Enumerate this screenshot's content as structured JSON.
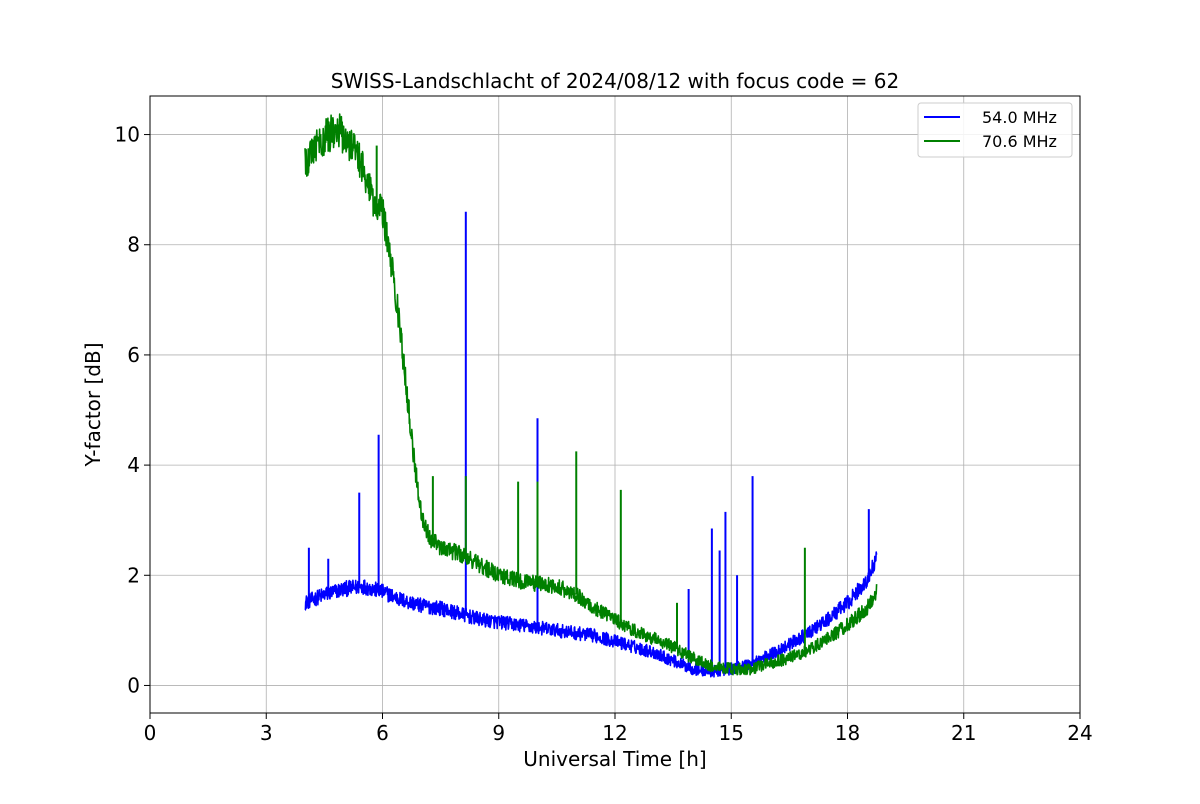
{
  "chart_data": {
    "type": "line",
    "title": "SWISS-Landschlacht of 2024/08/12 with focus code = 62",
    "xlabel": "Universal Time [h]",
    "ylabel": "Y-factor [dB]",
    "xlim": [
      0,
      24
    ],
    "ylim": [
      -0.5,
      10.7
    ],
    "xticks": [
      0,
      3,
      6,
      9,
      12,
      15,
      18,
      21,
      24
    ],
    "xtick_labels": [
      "0",
      "3",
      "6",
      "9",
      "12",
      "15",
      "18",
      "21",
      "24"
    ],
    "yticks": [
      0,
      2,
      4,
      6,
      8,
      10
    ],
    "ytick_labels": [
      "0",
      "2",
      "4",
      "6",
      "8",
      "10"
    ],
    "grid": true,
    "legend_position": "top-right",
    "legend": [
      "54.0 MHz",
      "70.6 MHz"
    ],
    "series": [
      {
        "name": "54.0 MHz",
        "color": "#0000ff",
        "x": [
          4.0,
          4.5,
          5.0,
          5.5,
          6.0,
          6.5,
          7.0,
          7.5,
          8.0,
          8.5,
          9.0,
          9.5,
          10.0,
          10.5,
          11.0,
          11.5,
          12.0,
          12.5,
          13.0,
          13.5,
          14.0,
          14.5,
          15.0,
          15.5,
          16.0,
          16.5,
          17.0,
          17.5,
          18.0,
          18.5,
          18.75
        ],
        "y": [
          1.5,
          1.65,
          1.75,
          1.8,
          1.7,
          1.55,
          1.45,
          1.4,
          1.3,
          1.2,
          1.15,
          1.1,
          1.05,
          1.0,
          0.95,
          0.9,
          0.8,
          0.7,
          0.6,
          0.45,
          0.3,
          0.25,
          0.3,
          0.4,
          0.55,
          0.75,
          0.95,
          1.2,
          1.5,
          1.9,
          2.3
        ],
        "spikes": [
          {
            "x": 4.1,
            "y": 2.5
          },
          {
            "x": 4.6,
            "y": 2.3
          },
          {
            "x": 5.4,
            "y": 3.5
          },
          {
            "x": 5.9,
            "y": 4.55
          },
          {
            "x": 8.15,
            "y": 8.6
          },
          {
            "x": 10.0,
            "y": 4.85
          },
          {
            "x": 13.9,
            "y": 1.75
          },
          {
            "x": 14.5,
            "y": 2.85
          },
          {
            "x": 14.7,
            "y": 2.45
          },
          {
            "x": 14.85,
            "y": 3.15
          },
          {
            "x": 15.15,
            "y": 2.0
          },
          {
            "x": 15.55,
            "y": 3.8
          },
          {
            "x": 18.55,
            "y": 3.2
          }
        ]
      },
      {
        "name": "70.6 MHz",
        "color": "#008000",
        "x": [
          4.0,
          4.3,
          4.6,
          4.9,
          5.2,
          5.5,
          5.8,
          6.0,
          6.2,
          6.4,
          6.6,
          6.8,
          7.0,
          7.2,
          7.5,
          8.0,
          8.5,
          9.0,
          9.5,
          10.0,
          10.5,
          11.0,
          11.5,
          12.0,
          12.5,
          13.0,
          13.5,
          14.0,
          14.5,
          15.0,
          15.5,
          16.0,
          16.5,
          17.0,
          17.5,
          18.0,
          18.5,
          18.75
        ],
        "y": [
          9.5,
          9.85,
          10.0,
          10.05,
          9.8,
          9.4,
          8.7,
          8.6,
          7.8,
          6.8,
          5.5,
          4.2,
          3.1,
          2.7,
          2.5,
          2.4,
          2.2,
          2.0,
          1.9,
          1.85,
          1.8,
          1.65,
          1.4,
          1.2,
          1.0,
          0.85,
          0.7,
          0.5,
          0.35,
          0.3,
          0.3,
          0.4,
          0.5,
          0.65,
          0.85,
          1.1,
          1.4,
          1.7
        ],
        "spikes": [
          {
            "x": 5.85,
            "y": 9.8
          },
          {
            "x": 7.3,
            "y": 3.8
          },
          {
            "x": 8.15,
            "y": 3.8
          },
          {
            "x": 9.5,
            "y": 3.7
          },
          {
            "x": 10.0,
            "y": 3.7
          },
          {
            "x": 11.0,
            "y": 4.25
          },
          {
            "x": 12.15,
            "y": 3.55
          },
          {
            "x": 13.6,
            "y": 1.5
          },
          {
            "x": 16.9,
            "y": 2.5
          }
        ]
      }
    ]
  }
}
